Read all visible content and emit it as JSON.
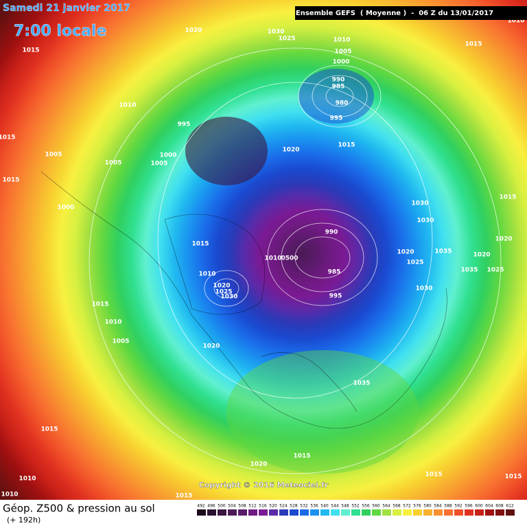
{
  "header": {
    "date": "Samedi 21 janvier 2017",
    "time": "7:00 locale",
    "banner": "Ensemble GEFS  ( Moyenne )  -  06 Z du 13/01/2017"
  },
  "copyright": "Copyright © 2016 Meteociel.fr",
  "footer": {
    "title": "Géop. Z500 & pression au sol",
    "subtitle": "(+ 192h)"
  },
  "isobar_labels": [
    "1020",
    "1030",
    "1025",
    "1010",
    "1010",
    "1015",
    "1015",
    "1005",
    "1000",
    "990",
    "985",
    "980",
    "995",
    "1010",
    "995",
    "1020",
    "1015",
    "1015",
    "1005",
    "1005",
    "1005",
    "1000",
    "1015",
    "1015",
    "1030",
    "1030",
    "1000",
    "990",
    "1015",
    "1010",
    "0500",
    "985",
    "1020",
    "1025",
    "1035",
    "1020",
    "1020",
    "1035",
    "1025",
    "1010",
    "1020",
    "1025",
    "1030",
    "995",
    "1030",
    "1015",
    "1010",
    "1005",
    "1020",
    "1035",
    "1015",
    "1015",
    "1020",
    "1010",
    "1015",
    "1015",
    "1010",
    "1015"
  ],
  "legend": {
    "values": [
      492,
      496,
      500,
      504,
      508,
      512,
      516,
      520,
      524,
      528,
      532,
      536,
      540,
      544,
      548,
      552,
      556,
      560,
      564,
      568,
      572,
      576,
      580,
      584,
      588,
      592,
      596,
      600,
      604,
      608,
      612
    ],
    "colors": [
      "#1a0a1a",
      "#2a1030",
      "#3a1540",
      "#4a1a55",
      "#5a1a6a",
      "#6e1a80",
      "#7a1a94",
      "#5a2aa8",
      "#2a3ab8",
      "#1a4ad0",
      "#1a6ae8",
      "#1a90f0",
      "#20b8f0",
      "#40e0f0",
      "#60f0d0",
      "#30e090",
      "#30d060",
      "#60d840",
      "#a0e040",
      "#d8f040",
      "#f8f040",
      "#f8d030",
      "#f8b030",
      "#f89030",
      "#f87030",
      "#f05028",
      "#e03020",
      "#c82018",
      "#a01010",
      "#801010",
      "#601010"
    ]
  }
}
